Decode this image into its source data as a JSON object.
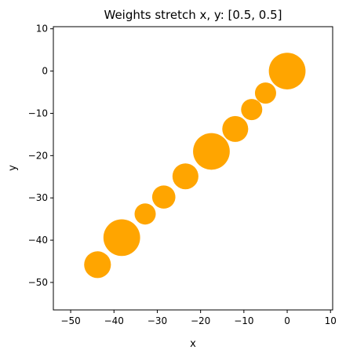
{
  "chart_data": {
    "type": "scatter",
    "title": "Weights stretch x, y: [0.5, 0.5]",
    "xlabel": "x",
    "ylabel": "y",
    "xlim": [
      -54,
      10.5
    ],
    "ylim": [
      -56.5,
      10.5
    ],
    "xticks": [
      -50,
      -40,
      -30,
      -20,
      -10,
      0,
      10
    ],
    "yticks": [
      -50,
      -40,
      -30,
      -20,
      -10,
      0,
      10
    ],
    "xtick_labels": [
      "−50",
      "−40",
      "−30",
      "−20",
      "−10",
      "0",
      "10"
    ],
    "ytick_labels": [
      "−50",
      "−40",
      "−30",
      "−20",
      "−10",
      "0",
      "10"
    ],
    "grid": false,
    "marker_color": "#FFA500",
    "points": [
      {
        "x": 0.0,
        "y": 0.0,
        "size": 3
      },
      {
        "x": -5.0,
        "y": -5.2,
        "size": 1
      },
      {
        "x": -8.2,
        "y": -9.1,
        "size": 1
      },
      {
        "x": -12.0,
        "y": -13.7,
        "size": 1.5
      },
      {
        "x": -17.5,
        "y": -19.0,
        "size": 3
      },
      {
        "x": -23.5,
        "y": -24.9,
        "size": 1.5
      },
      {
        "x": -28.5,
        "y": -29.8,
        "size": 1.2
      },
      {
        "x": -32.8,
        "y": -33.8,
        "size": 1
      },
      {
        "x": -38.2,
        "y": -39.4,
        "size": 3
      },
      {
        "x": -43.8,
        "y": -45.8,
        "size": 1.6
      }
    ]
  }
}
